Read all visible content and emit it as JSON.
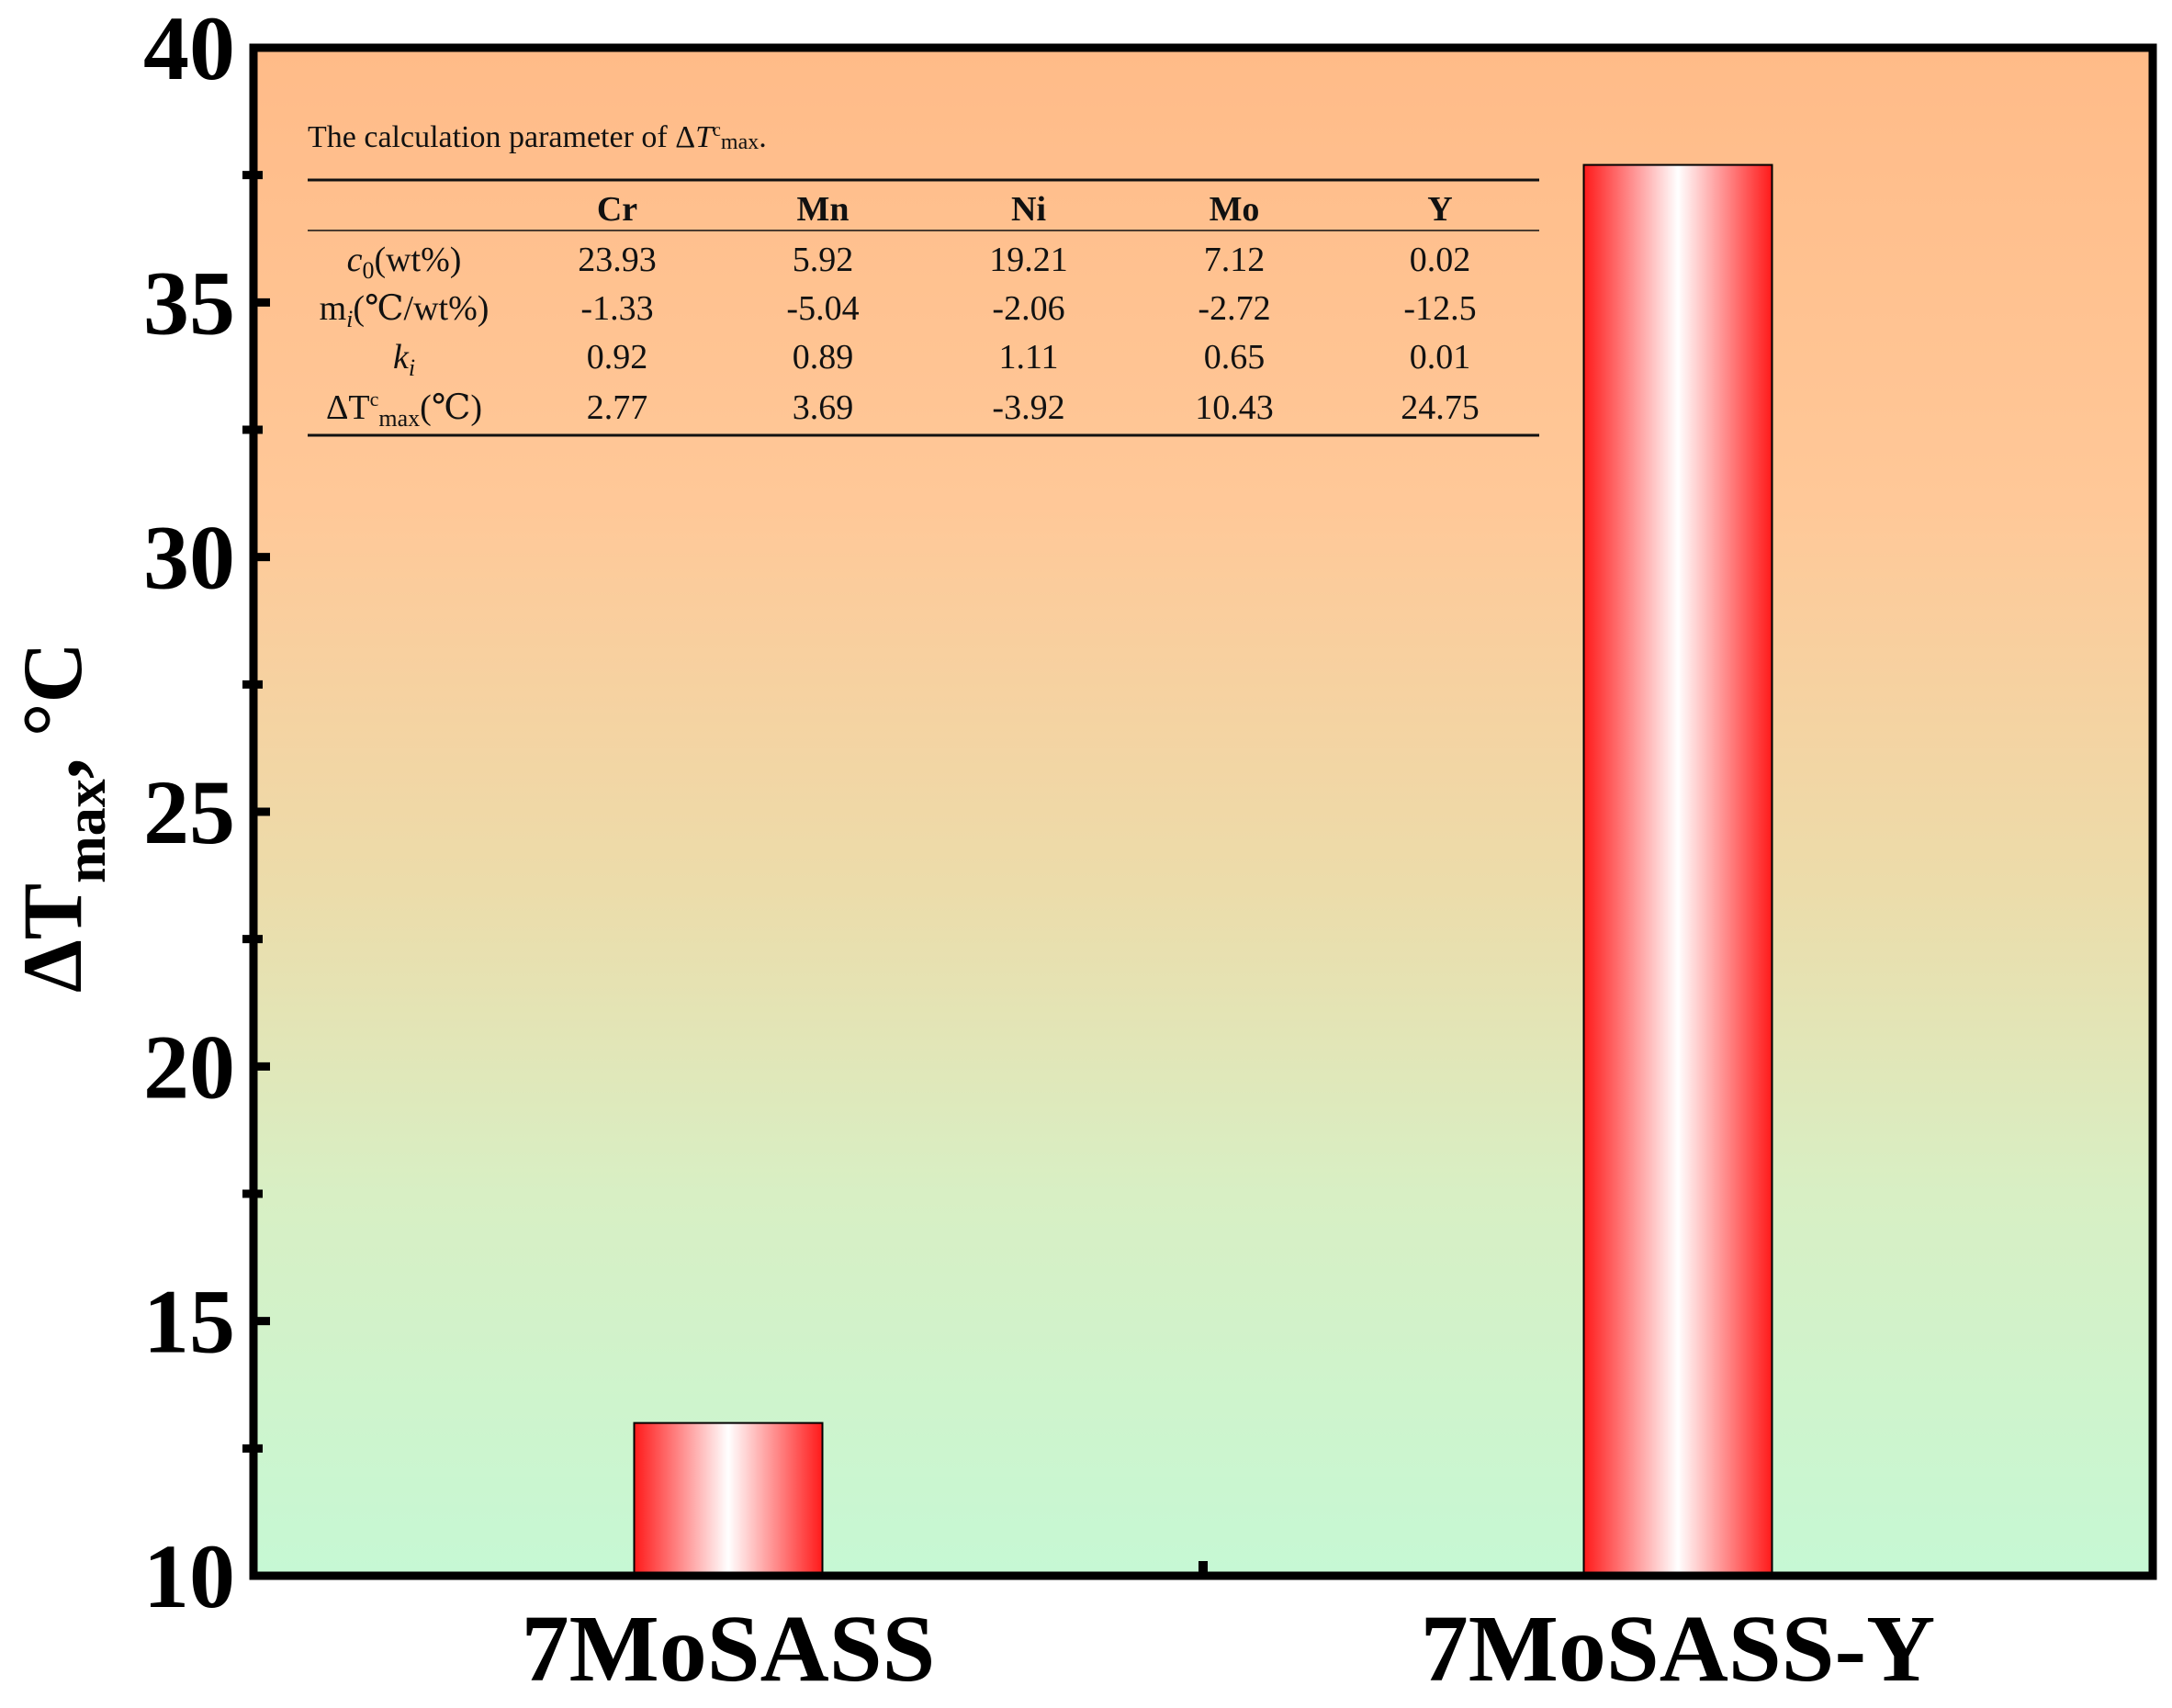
{
  "chart_data": {
    "type": "bar",
    "categories": [
      "7MoSASS",
      "7MoSASS-Y"
    ],
    "values": [
      13.0,
      37.7
    ],
    "title": "",
    "xlabel": "",
    "ylabel": {
      "main": "ΔT",
      "sub": "max",
      "unit": ", °C"
    },
    "ylim": [
      10,
      40
    ],
    "yticks": [
      10,
      15,
      20,
      25,
      30,
      35,
      40
    ],
    "grid": false,
    "colors": {
      "bar_edge": "#ff1a1a",
      "bar_center": "#ffffff",
      "bg_top": "#ffbb88",
      "bg_bottom": "#c6f8d4"
    },
    "inset_table": {
      "caption": {
        "prefix": "The calculation parameter of Δ",
        "T": "T",
        "sup": "c",
        "sub": "max",
        "end": "."
      },
      "headers": [
        "Cr",
        "Mn",
        "Ni",
        "Mo",
        "Y"
      ],
      "rows": [
        {
          "label": {
            "main": "c",
            "sub": "0",
            "rest": "(wt%)",
            "main_italic": true,
            "sub_italic": false
          },
          "values": [
            "23.93",
            "5.92",
            "19.21",
            "7.12",
            "0.02"
          ]
        },
        {
          "label": {
            "main": "m",
            "sub": "i",
            "rest": "(℃/wt%)",
            "main_italic": false,
            "sub_italic": true
          },
          "values": [
            "-1.33",
            "-5.04",
            "-2.06",
            "-2.72",
            "-12.5"
          ]
        },
        {
          "label": {
            "main": "k",
            "sub": "i",
            "rest": "",
            "main_italic": true,
            "sub_italic": true
          },
          "values": [
            "0.92",
            "0.89",
            "1.11",
            "0.65",
            "0.01"
          ]
        },
        {
          "label": {
            "main": "ΔT",
            "sup": "c",
            "sub": "max",
            "rest": "(℃)",
            "main_italic": false,
            "sub_italic": false
          },
          "values": [
            "2.77",
            "3.69",
            "-3.92",
            "10.43",
            "24.75"
          ]
        }
      ]
    }
  }
}
